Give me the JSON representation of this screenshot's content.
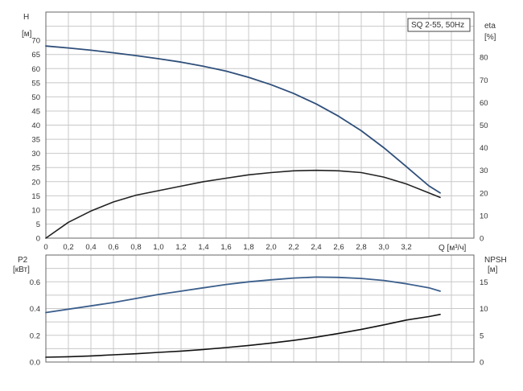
{
  "chart_data": [
    {
      "type": "line",
      "legend": "SQ 2-55, 50Hz",
      "xlabel": "Q [м³/ч]",
      "ylabel_left": [
        "H",
        "[м]"
      ],
      "ylabel_right": [
        "eta",
        "[%]"
      ],
      "xlim": [
        0,
        3.8
      ],
      "ylim_left": [
        0,
        80
      ],
      "ylim_right": [
        0,
        100
      ],
      "x_ticks": [
        "0",
        "0,2",
        "0,4",
        "0,6",
        "0,8",
        "1,0",
        "1,2",
        "1,4",
        "1,6",
        "1,8",
        "2,0",
        "2,2",
        "2,4",
        "2,6",
        "2,8",
        "3,0",
        "3,2"
      ],
      "y_ticks_left": [
        "0",
        "5",
        "10",
        "15",
        "20",
        "25",
        "30",
        "35",
        "40",
        "45",
        "50",
        "55",
        "60",
        "65",
        "70"
      ],
      "y_ticks_right": [
        "0",
        "10",
        "20",
        "30",
        "40",
        "50",
        "60",
        "70",
        "80"
      ],
      "series": [
        {
          "axis": "left",
          "color": "#2f4f7a",
          "x": [
            0,
            0.2,
            0.4,
            0.6,
            0.8,
            1.0,
            1.2,
            1.4,
            1.6,
            1.8,
            2.0,
            2.2,
            2.4,
            2.6,
            2.8,
            3.0,
            3.2,
            3.4,
            3.5
          ],
          "values": [
            68,
            67.3,
            66.5,
            65.6,
            64.6,
            63.5,
            62.3,
            60.8,
            59.1,
            56.9,
            54.3,
            51.2,
            47.5,
            43.1,
            38,
            32,
            25.3,
            18.5,
            16
          ]
        },
        {
          "axis": "right",
          "color": "#222222",
          "x": [
            0,
            0.2,
            0.4,
            0.6,
            0.8,
            1.0,
            1.2,
            1.4,
            1.6,
            1.8,
            2.0,
            2.2,
            2.4,
            2.6,
            2.8,
            3.0,
            3.2,
            3.4,
            3.5
          ],
          "values": [
            0,
            7,
            12,
            16,
            19,
            21,
            23,
            25,
            26.5,
            28,
            29,
            29.8,
            30,
            29.8,
            29,
            27,
            24,
            20,
            18
          ]
        }
      ]
    },
    {
      "type": "line",
      "xlabel": "",
      "ylabel_left": [
        "P2",
        "[кВт]"
      ],
      "ylabel_right": [
        "NPSH",
        "[м]"
      ],
      "xlim": [
        0,
        3.8
      ],
      "ylim_left": [
        0,
        0.8
      ],
      "ylim_right": [
        0,
        20
      ],
      "y_ticks_left": [
        "0.0",
        "0.2",
        "0.4",
        "0.6"
      ],
      "y_ticks_right": [
        "0",
        "5",
        "10",
        "15"
      ],
      "series": [
        {
          "axis": "left",
          "color": "#3c5f8c",
          "x": [
            0,
            0.2,
            0.4,
            0.6,
            0.8,
            1.0,
            1.2,
            1.4,
            1.6,
            1.8,
            2.0,
            2.2,
            2.4,
            2.6,
            2.8,
            3.0,
            3.2,
            3.4,
            3.5
          ],
          "values": [
            0.37,
            0.395,
            0.42,
            0.445,
            0.475,
            0.505,
            0.53,
            0.555,
            0.58,
            0.6,
            0.615,
            0.628,
            0.635,
            0.633,
            0.625,
            0.61,
            0.585,
            0.555,
            0.53
          ]
        },
        {
          "axis": "right",
          "color": "#111111",
          "x": [
            0,
            0.2,
            0.4,
            0.6,
            0.8,
            1.0,
            1.2,
            1.4,
            1.6,
            1.8,
            2.0,
            2.2,
            2.4,
            2.6,
            2.8,
            3.0,
            3.2,
            3.4,
            3.5
          ],
          "values": [
            0.9,
            1.0,
            1.15,
            1.35,
            1.55,
            1.8,
            2.05,
            2.35,
            2.7,
            3.1,
            3.55,
            4.05,
            4.65,
            5.35,
            6.1,
            6.95,
            7.85,
            8.5,
            8.9
          ]
        }
      ]
    }
  ]
}
